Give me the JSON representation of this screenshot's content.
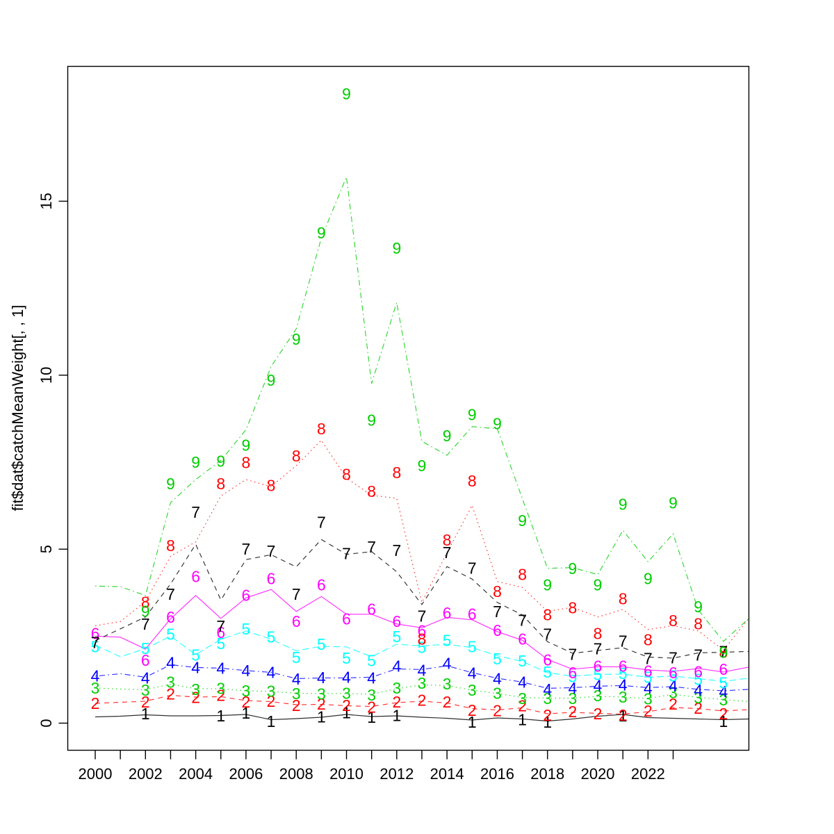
{
  "figure": {
    "background": "#ffffff"
  },
  "y_axis": {
    "label": "fit$dat$catchMeanWeight[, , 1]",
    "ticks": [
      "0",
      "5",
      "10",
      "15"
    ],
    "tick_values": [
      0,
      5,
      10,
      15
    ]
  },
  "x_axis": {
    "tick_from": 2000,
    "tick_to": 2023,
    "label_years": [
      2000,
      2002,
      2004,
      2006,
      2008,
      2010,
      2012,
      2014,
      2016,
      2018,
      2020,
      2022
    ]
  },
  "chart_data": {
    "type": "line",
    "title": "",
    "xlabel": "",
    "ylabel": "fit$dat$catchMeanWeight[, , 1]",
    "ylim": [
      -0.77,
      18.92
    ],
    "xlim": [
      1998.9,
      2027.1
    ],
    "grid": false,
    "legend_position": "none",
    "x": [
      2000,
      2001,
      2002,
      2003,
      2004,
      2005,
      2006,
      2007,
      2008,
      2009,
      2010,
      2011,
      2012,
      2013,
      2014,
      2015,
      2016,
      2017,
      2018,
      2019,
      2020,
      2021,
      2022,
      2023,
      2024,
      2025
    ],
    "line_x": [
      2000,
      2001,
      2002,
      2003,
      2004,
      2005,
      2006,
      2007,
      2008,
      2009,
      2010,
      2011,
      2012,
      2013,
      2014,
      2015,
      2016,
      2017,
      2018,
      2019,
      2020,
      2021,
      2022,
      2023,
      2024,
      2025,
      2026
    ],
    "note": "points = observed values plotted as age-number characters; line = smoothed fit line vertices",
    "series": [
      {
        "label": "1",
        "name": "age-1",
        "color": "#000000",
        "linetype": "solid",
        "points": [
          null,
          null,
          0.27,
          null,
          null,
          0.21,
          0.29,
          0.05,
          null,
          0.18,
          0.3,
          0.17,
          0.22,
          null,
          null,
          0.03,
          null,
          0.1,
          0.03,
          null,
          null,
          0.21,
          null,
          null,
          null,
          0.05
        ],
        "line": [
          0.18,
          0.2,
          0.24,
          0.21,
          0.21,
          0.22,
          0.25,
          0.1,
          0.13,
          0.17,
          0.25,
          0.19,
          0.21,
          0.17,
          0.14,
          0.09,
          0.15,
          0.12,
          0.06,
          0.12,
          0.2,
          0.25,
          0.16,
          0.14,
          0.12,
          0.1,
          0.12
        ]
      },
      {
        "label": "2",
        "name": "age-2",
        "color": "#FF0000",
        "linetype": "dashed",
        "points": [
          0.57,
          null,
          0.61,
          0.84,
          0.74,
          0.8,
          0.61,
          0.63,
          0.51,
          0.55,
          0.51,
          0.46,
          0.61,
          0.66,
          0.61,
          0.37,
          0.36,
          0.5,
          0.23,
          0.33,
          0.27,
          0.23,
          0.35,
          0.55,
          0.43,
          0.27
        ],
        "line": [
          0.57,
          0.6,
          0.63,
          0.8,
          0.75,
          0.76,
          0.65,
          0.62,
          0.53,
          0.54,
          0.5,
          0.48,
          0.59,
          0.63,
          0.58,
          0.42,
          0.38,
          0.44,
          0.27,
          0.31,
          0.28,
          0.26,
          0.33,
          0.45,
          0.42,
          0.35,
          0.39
        ]
      },
      {
        "label": "3",
        "name": "age-3",
        "color": "#00CD00",
        "linetype": "dotted",
        "points": [
          1.01,
          null,
          0.95,
          1.17,
          0.97,
          1.0,
          0.93,
          0.92,
          0.85,
          0.84,
          0.86,
          0.81,
          1.01,
          1.14,
          1.12,
          0.95,
          0.86,
          0.71,
          0.71,
          0.71,
          0.79,
          0.75,
          0.7,
          0.88,
          0.73,
          0.67
        ],
        "line": [
          1.01,
          0.98,
          0.96,
          1.12,
          0.99,
          0.99,
          0.93,
          0.91,
          0.86,
          0.85,
          0.85,
          0.83,
          0.99,
          1.1,
          1.08,
          0.95,
          0.85,
          0.74,
          0.72,
          0.72,
          0.77,
          0.75,
          0.71,
          0.83,
          0.74,
          0.68,
          0.62
        ]
      },
      {
        "label": "4",
        "name": "age-4",
        "color": "#0000FF",
        "linetype": "dotdash",
        "points": [
          1.35,
          null,
          1.29,
          1.73,
          1.59,
          1.57,
          1.5,
          1.45,
          1.26,
          1.3,
          1.31,
          1.29,
          1.63,
          1.51,
          1.71,
          1.43,
          1.27,
          1.17,
          0.97,
          1.01,
          1.07,
          1.09,
          1.01,
          1.07,
          0.95,
          0.91
        ],
        "line": [
          1.35,
          1.42,
          1.32,
          1.68,
          1.6,
          1.58,
          1.51,
          1.46,
          1.28,
          1.3,
          1.3,
          1.32,
          1.56,
          1.54,
          1.65,
          1.45,
          1.29,
          1.18,
          1.0,
          1.02,
          1.06,
          1.08,
          1.02,
          1.05,
          0.97,
          0.93,
          0.97
        ]
      },
      {
        "label": "5",
        "name": "age-5",
        "color": "#00FFFF",
        "linetype": "longdash",
        "points": [
          2.19,
          null,
          2.14,
          2.55,
          1.95,
          2.28,
          2.7,
          2.47,
          1.88,
          2.26,
          1.86,
          1.79,
          2.48,
          2.17,
          2.37,
          2.19,
          1.84,
          1.78,
          1.46,
          1.33,
          1.39,
          1.42,
          1.31,
          1.35,
          1.25,
          1.15
        ],
        "line": [
          2.24,
          1.91,
          2.14,
          2.5,
          1.97,
          2.41,
          2.65,
          2.41,
          2.08,
          2.21,
          2.19,
          1.91,
          2.27,
          2.22,
          2.27,
          2.17,
          1.94,
          1.77,
          1.45,
          1.35,
          1.4,
          1.41,
          1.32,
          1.35,
          1.28,
          1.2,
          1.29
        ]
      },
      {
        "label": "6",
        "name": "age-6",
        "color": "#FF00FF",
        "linetype": "solid",
        "points": [
          2.57,
          null,
          1.8,
          3.04,
          4.21,
          2.6,
          3.67,
          4.15,
          2.92,
          3.97,
          2.99,
          3.27,
          2.92,
          2.65,
          3.16,
          3.13,
          2.66,
          2.41,
          1.81,
          1.44,
          1.63,
          1.63,
          1.49,
          1.44,
          1.47,
          1.54
        ],
        "line": [
          2.5,
          2.47,
          2.13,
          3.0,
          3.67,
          3.01,
          3.6,
          3.84,
          3.21,
          3.64,
          3.13,
          3.13,
          2.85,
          2.74,
          3.04,
          2.97,
          2.63,
          2.38,
          1.83,
          1.55,
          1.62,
          1.62,
          1.53,
          1.49,
          1.57,
          1.47,
          1.61
        ]
      },
      {
        "label": "7",
        "name": "age-7",
        "color": "#000000",
        "linetype": "dashed",
        "points": [
          2.31,
          null,
          2.84,
          3.7,
          6.06,
          2.78,
          5.0,
          4.94,
          3.7,
          5.77,
          4.87,
          5.06,
          4.96,
          3.07,
          4.9,
          4.45,
          3.2,
          2.95,
          2.55,
          1.97,
          2.13,
          2.35,
          1.85,
          1.87,
          1.95,
          2.05
        ],
        "line": [
          2.37,
          2.71,
          3.05,
          4.0,
          5.14,
          3.54,
          4.7,
          4.84,
          4.49,
          5.28,
          4.85,
          4.93,
          4.35,
          3.41,
          4.5,
          4.14,
          3.47,
          3.11,
          2.34,
          2.01,
          2.09,
          2.17,
          1.9,
          1.87,
          2.02,
          2.04,
          2.06
        ]
      },
      {
        "label": "8",
        "name": "age-8",
        "color": "#FF0000",
        "linetype": "dotted",
        "points": [
          null,
          null,
          3.47,
          5.1,
          null,
          6.88,
          7.49,
          6.83,
          7.68,
          8.46,
          7.15,
          6.66,
          7.2,
          2.41,
          5.26,
          6.96,
          3.78,
          4.27,
          3.11,
          3.31,
          2.57,
          3.57,
          2.39,
          2.94,
          2.85,
          2.03
        ],
        "line": [
          2.8,
          2.92,
          3.5,
          4.8,
          5.21,
          6.53,
          7.0,
          6.8,
          7.4,
          8.13,
          7.04,
          6.55,
          6.46,
          3.47,
          4.9,
          6.26,
          4.07,
          3.9,
          3.21,
          3.33,
          3.05,
          3.27,
          2.69,
          2.8,
          2.65,
          2.1,
          3.0
        ]
      },
      {
        "label": "9",
        "name": "age-9",
        "color": "#00CD00",
        "linetype": "dotdash",
        "points": [
          null,
          null,
          3.21,
          6.88,
          7.5,
          7.53,
          7.99,
          9.85,
          11.03,
          14.09,
          18.08,
          8.7,
          13.65,
          7.4,
          8.26,
          8.86,
          8.61,
          5.82,
          3.97,
          4.44,
          3.97,
          6.29,
          4.15,
          6.33,
          3.34,
          2.03
        ],
        "line": [
          3.94,
          3.92,
          3.67,
          6.34,
          7.0,
          7.55,
          8.43,
          10.25,
          11.33,
          13.95,
          15.7,
          9.76,
          12.09,
          8.1,
          7.7,
          8.52,
          8.46,
          6.45,
          4.45,
          4.47,
          4.27,
          5.54,
          4.64,
          5.44,
          3.25,
          2.35,
          3.0
        ]
      }
    ]
  }
}
